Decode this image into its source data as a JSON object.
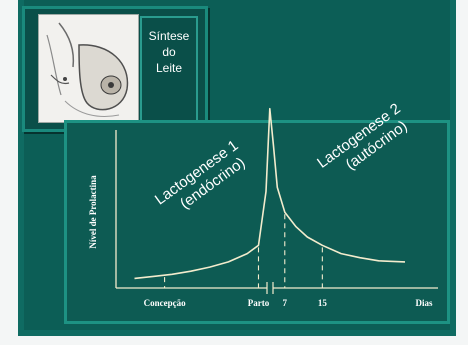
{
  "title": {
    "lines": [
      "Síntese",
      "do",
      "Leite"
    ]
  },
  "chart_data": {
    "type": "line",
    "ylabel": "Nível de Prolactina",
    "xlabel": "Dias",
    "x_ticks": [
      "Concepção",
      "Parto",
      "7",
      "15"
    ],
    "annotations": [
      {
        "lines": [
          "Lactogenese 1",
          "(endócrino)"
        ]
      },
      {
        "lines": [
          "Lactogenese 2",
          "(autócrino)"
        ]
      }
    ],
    "axis_break": true,
    "series": [
      {
        "x": [
          0,
          5,
          10,
          15,
          20,
          25,
          30,
          33,
          35,
          36,
          37,
          38,
          40,
          43,
          46,
          50,
          55,
          60,
          65,
          72
        ],
        "y": [
          8,
          9,
          10,
          11.5,
          13.5,
          16,
          20,
          24,
          50,
          90,
          72,
          52,
          40,
          33,
          28,
          24,
          20,
          18,
          16.5,
          16
        ]
      }
    ],
    "marker_x": [
      8,
      33,
      40,
      50
    ],
    "xlim": [
      -6,
      76
    ],
    "ylim": [
      0,
      100
    ],
    "colors": {
      "curve": "#f3eccd",
      "axis": "#f3eccd",
      "label": "#ffffff"
    }
  }
}
